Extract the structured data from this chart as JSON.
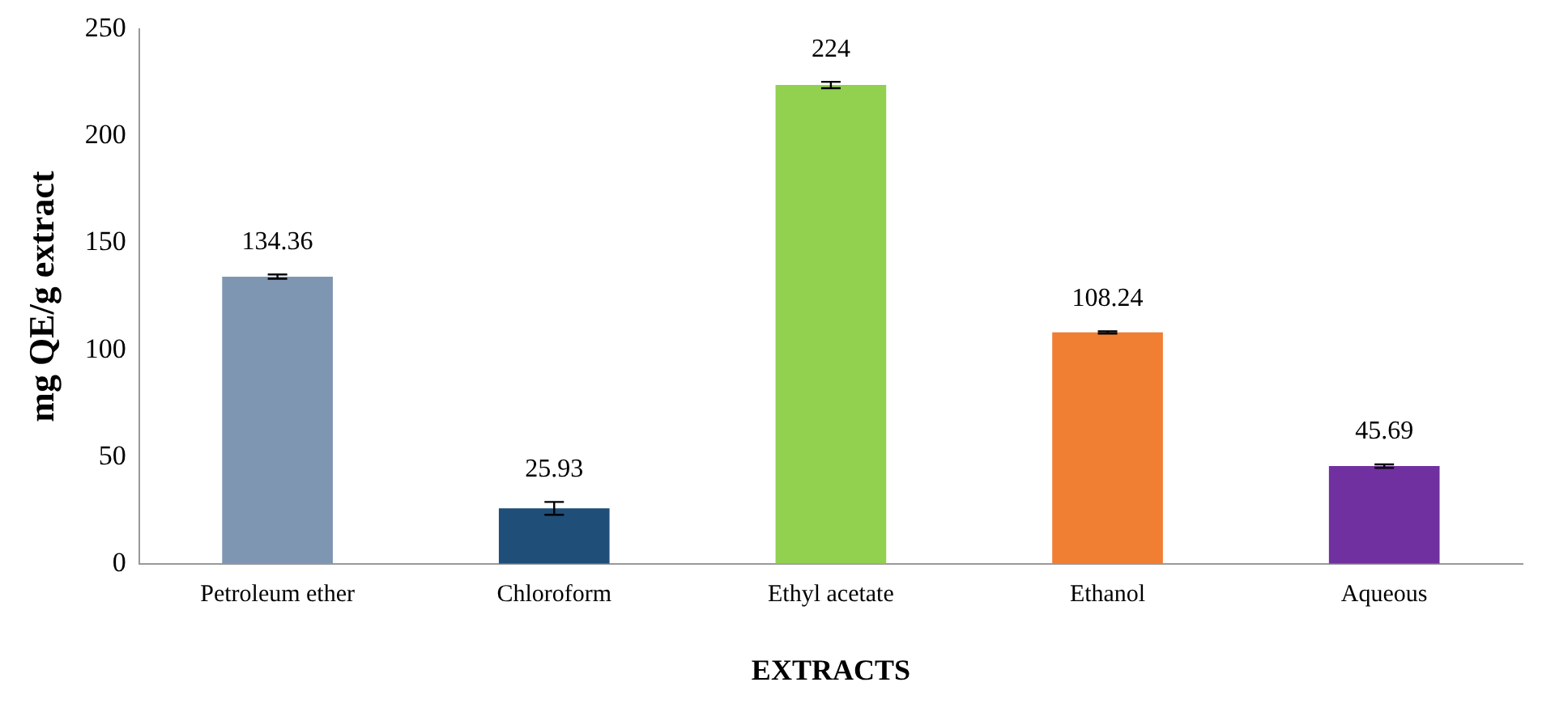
{
  "chart_data": {
    "type": "bar",
    "xlabel": "EXTRACTS",
    "ylabel": "mg QE/g extract",
    "categories": [
      "Petroleum ether",
      "Chloroform",
      "Ethyl acetate",
      "Ethanol",
      "Aqueous"
    ],
    "values": [
      134.36,
      25.93,
      224,
      108.24,
      45.69
    ],
    "colors": [
      "#7f96b2",
      "#1f4e79",
      "#92d050",
      "#f07f33",
      "#7030a0"
    ],
    "errors": [
      1,
      3,
      1.5,
      0.5,
      0.8
    ],
    "ylim": [
      0,
      250
    ],
    "yticks": [
      0,
      50,
      100,
      150,
      200,
      250
    ],
    "grid": false,
    "legend": false,
    "data_labels": true
  }
}
